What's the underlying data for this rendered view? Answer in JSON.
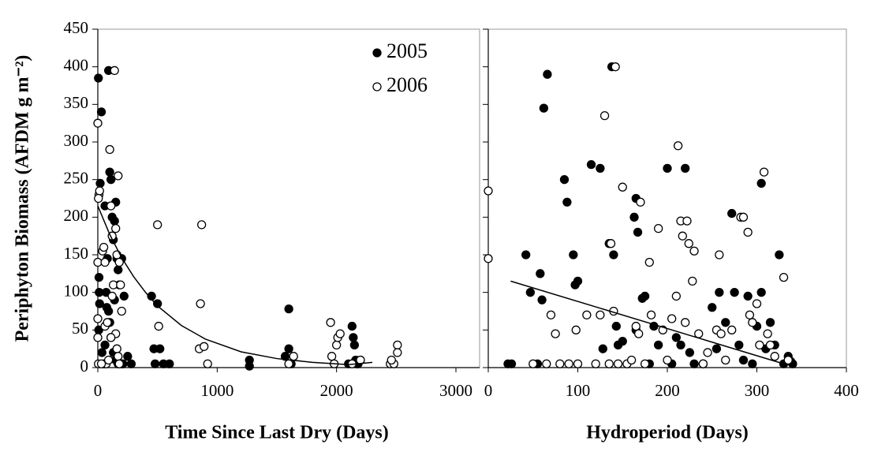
{
  "chart_data": [
    {
      "type": "scatter",
      "ylabel": "Periphyton Biomass (AFDM g m⁻²)",
      "xlabel": "Time Since Last Dry (Days)",
      "xlim": [
        0,
        3000
      ],
      "xticks": [
        0,
        1000,
        2000,
        3000
      ],
      "ylim": [
        0,
        450
      ],
      "yticks": [
        0,
        50,
        100,
        150,
        200,
        250,
        300,
        350,
        400,
        450
      ],
      "show_ytick_labels": true,
      "legend": "upper right",
      "series": [
        {
          "name": "2005",
          "color": "#000000",
          "marker": "filled",
          "x": [
            5,
            10,
            12,
            15,
            8,
            20,
            30,
            60,
            70,
            80,
            90,
            100,
            110,
            120,
            130,
            140,
            150,
            160,
            170,
            180,
            200,
            220,
            100,
            110,
            130,
            150,
            50,
            200,
            250,
            280,
            450,
            470,
            500,
            520,
            480,
            550,
            600,
            1270,
            1270,
            1600,
            1600,
            1570,
            1620,
            2130,
            2140,
            2150,
            2160,
            2170,
            2180,
            2200,
            2100,
            35,
            60,
            90,
            75,
            140,
            170,
            210
          ],
          "values": [
            385,
            120,
            100,
            85,
            50,
            245,
            340,
            215,
            100,
            145,
            395,
            260,
            250,
            200,
            170,
            195,
            220,
            145,
            130,
            110,
            145,
            95,
            60,
            40,
            20,
            10,
            5,
            5,
            15,
            5,
            95,
            25,
            85,
            25,
            5,
            5,
            5,
            10,
            2,
            78,
            25,
            15,
            5,
            55,
            40,
            30,
            10,
            5,
            5,
            10,
            5,
            20,
            30,
            75,
            80,
            90,
            5,
            5
          ]
        },
        {
          "name": "2006",
          "color": "#000000",
          "marker": "open",
          "x": [
            0,
            10,
            15,
            5,
            0,
            0,
            0,
            5,
            40,
            50,
            60,
            70,
            80,
            100,
            110,
            120,
            130,
            140,
            150,
            160,
            170,
            180,
            190,
            200,
            150,
            160,
            170,
            180,
            120,
            110,
            90,
            500,
            510,
            870,
            860,
            850,
            890,
            920,
            1600,
            1640,
            1950,
            2000,
            2010,
            2030,
            1960,
            1980,
            2130,
            2200,
            2450,
            2480,
            2510,
            2510,
            2460,
            30,
            60
          ],
          "values": [
            325,
            230,
            235,
            225,
            140,
            65,
            40,
            5,
            155,
            160,
            55,
            5,
            60,
            290,
            215,
            175,
            110,
            395,
            185,
            150,
            255,
            140,
            110,
            75,
            45,
            25,
            15,
            5,
            95,
            40,
            10,
            190,
            55,
            190,
            85,
            25,
            28,
            5,
            5,
            15,
            60,
            30,
            40,
            45,
            15,
            5,
            5,
            10,
            5,
            5,
            30,
            20,
            10,
            5,
            140
          ]
        }
      ],
      "trend": {
        "color": "#000000",
        "x": [
          0,
          100,
          200,
          300,
          400,
          500,
          700,
          900,
          1200,
          1500,
          1800,
          2100,
          2300
        ],
        "values": [
          215,
          177,
          146,
          121,
          100,
          82,
          56,
          38,
          21,
          12,
          7,
          4,
          7
        ]
      }
    },
    {
      "type": "scatter",
      "xlabel": "Hydroperiod (Days)",
      "xlim": [
        0,
        400
      ],
      "xticks": [
        0,
        100,
        200,
        300,
        400
      ],
      "ylim": [
        0,
        450
      ],
      "yticks": [
        0,
        50,
        100,
        150,
        200,
        250,
        300,
        350,
        400,
        450
      ],
      "show_ytick_labels": false,
      "series": [
        {
          "color": "#000000",
          "marker": "filled",
          "x": [
            22,
            26,
            42,
            47,
            55,
            58,
            60,
            62,
            66,
            85,
            88,
            95,
            97,
            100,
            115,
            125,
            128,
            135,
            138,
            140,
            143,
            145,
            150,
            163,
            165,
            167,
            165,
            172,
            175,
            180,
            185,
            190,
            200,
            205,
            210,
            215,
            220,
            225,
            230,
            240,
            250,
            255,
            258,
            265,
            272,
            275,
            280,
            285,
            290,
            295,
            300,
            305,
            305,
            310,
            315,
            320,
            325,
            330,
            335,
            338,
            340
          ],
          "values": [
            5,
            5,
            150,
            100,
            5,
            125,
            90,
            345,
            390,
            250,
            220,
            150,
            110,
            115,
            270,
            265,
            25,
            165,
            400,
            150,
            55,
            30,
            35,
            200,
            225,
            180,
            50,
            92,
            95,
            5,
            55,
            30,
            265,
            5,
            40,
            30,
            265,
            20,
            5,
            5,
            80,
            25,
            100,
            60,
            205,
            100,
            30,
            10,
            95,
            5,
            55,
            245,
            100,
            25,
            60,
            30,
            150,
            5,
            15,
            8,
            5
          ]
        },
        {
          "color": "#000000",
          "marker": "open",
          "x": [
            0,
            0,
            50,
            65,
            70,
            75,
            80,
            90,
            98,
            100,
            110,
            120,
            125,
            130,
            135,
            137,
            140,
            142,
            145,
            150,
            155,
            160,
            165,
            168,
            170,
            175,
            180,
            182,
            190,
            195,
            200,
            205,
            210,
            212,
            215,
            217,
            220,
            222,
            224,
            228,
            230,
            235,
            240,
            245,
            255,
            258,
            260,
            265,
            272,
            282,
            285,
            290,
            292,
            295,
            300,
            303,
            308,
            312,
            315,
            320,
            330,
            335
          ],
          "values": [
            235,
            145,
            5,
            5,
            70,
            45,
            5,
            5,
            50,
            5,
            70,
            5,
            70,
            335,
            5,
            165,
            75,
            400,
            5,
            240,
            5,
            10,
            55,
            45,
            220,
            5,
            140,
            70,
            185,
            50,
            10,
            65,
            95,
            295,
            195,
            175,
            60,
            195,
            165,
            115,
            155,
            45,
            5,
            20,
            50,
            150,
            45,
            10,
            50,
            200,
            200,
            180,
            70,
            60,
            85,
            30,
            260,
            45,
            30,
            15,
            120,
            10
          ]
        }
      ],
      "trend": {
        "color": "#000000",
        "x": [
          25,
          330
        ],
        "values": [
          115,
          5
        ]
      }
    }
  ]
}
